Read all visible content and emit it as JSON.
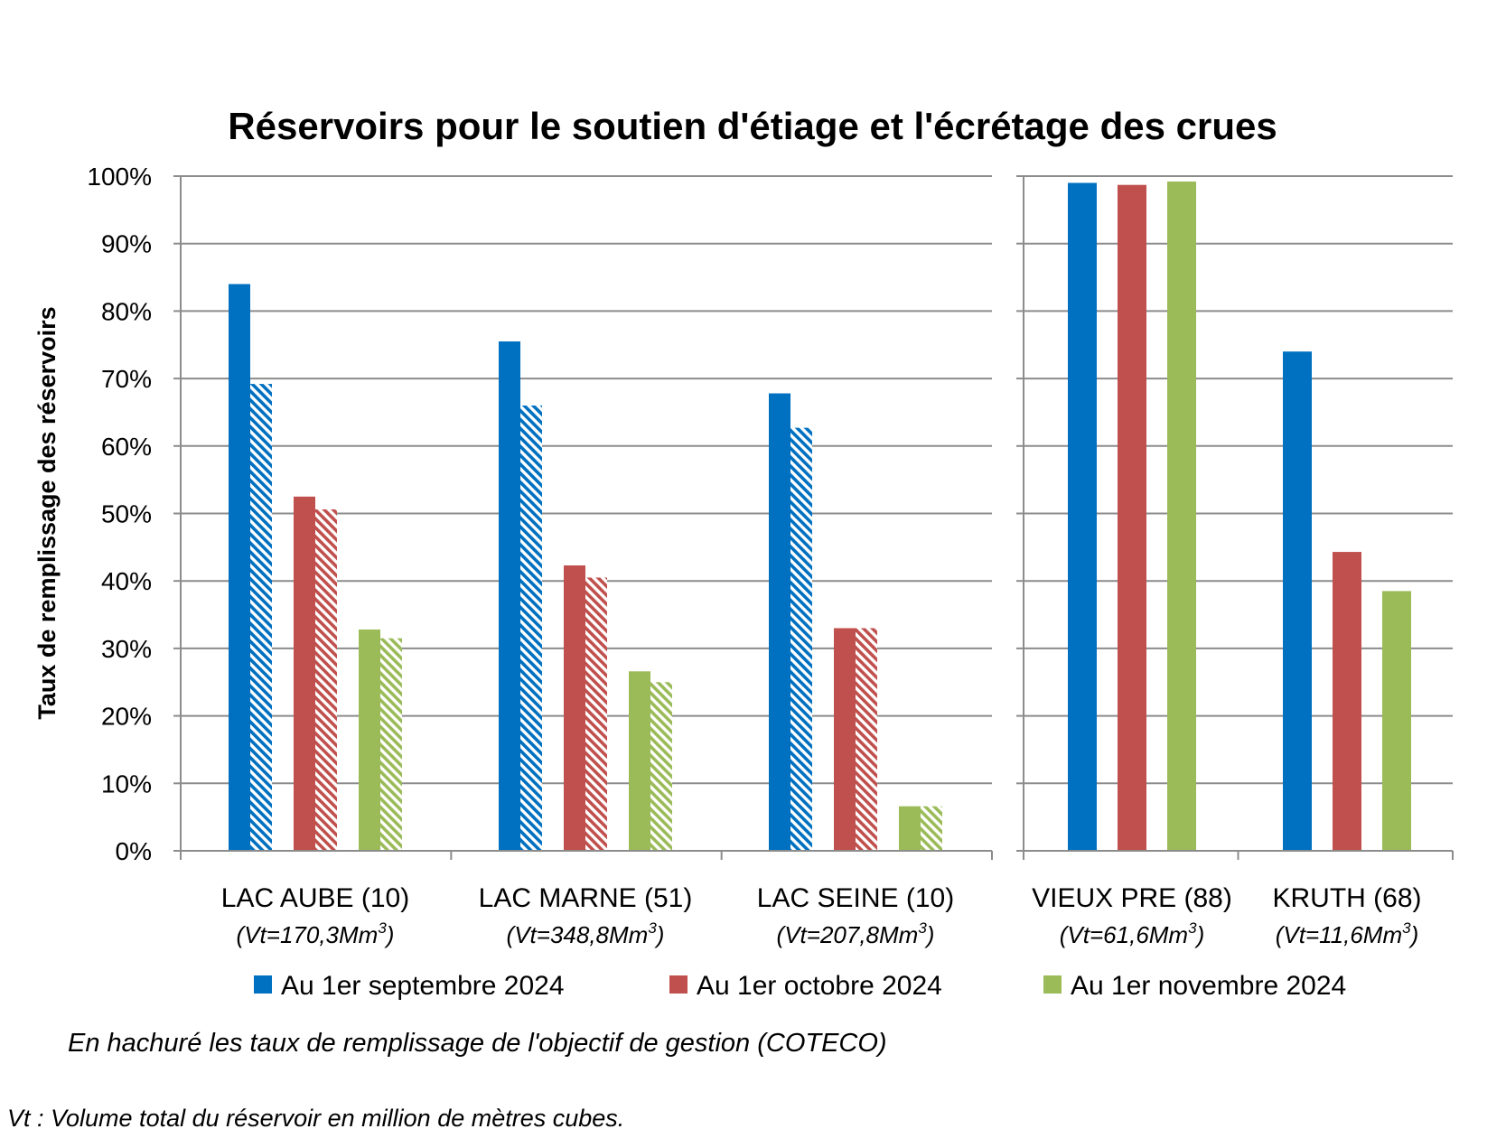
{
  "chart_data": {
    "type": "bar",
    "title": "Réservoirs pour le soutien d'étiage et l'écrétage des crues",
    "ylabel": "Taux de remplissage des réservoirs",
    "ylim": [
      0,
      100
    ],
    "yticks": [
      "0%",
      "10%",
      "20%",
      "30%",
      "40%",
      "50%",
      "60%",
      "70%",
      "80%",
      "90%",
      "100%"
    ],
    "grid": true,
    "legend_position": "bottom",
    "panels": [
      {
        "categories": [
          {
            "name": "LAC AUBE (10)",
            "vt_label": "(Vt=170,3Mm",
            "vt_sup": "3",
            "vt_close": ")"
          },
          {
            "name": "LAC MARNE (51)",
            "vt_label": "(Vt=348,8Mm",
            "vt_sup": "3",
            "vt_close": ")"
          },
          {
            "name": "LAC SEINE (10)",
            "vt_label": "(Vt=207,8Mm",
            "vt_sup": "3",
            "vt_close": ")"
          }
        ],
        "has_objective": true
      },
      {
        "categories": [
          {
            "name": "VIEUX PRE (88)",
            "vt_label": "(Vt=61,6Mm",
            "vt_sup": "3",
            "vt_close": ")"
          },
          {
            "name": "KRUTH (68)",
            "vt_label": "(Vt=11,6Mm",
            "vt_sup": "3",
            "vt_close": ")"
          }
        ],
        "has_objective": false
      }
    ],
    "series": [
      {
        "name": "Au 1er septembre 2024",
        "color": "#0070C0",
        "values": [
          84.0,
          75.5,
          67.8,
          99.0,
          74.0
        ],
        "objective": [
          69.2,
          66.0,
          62.7,
          null,
          null
        ]
      },
      {
        "name": "Au 1er octobre 2024",
        "color": "#C0504D",
        "values": [
          52.5,
          42.3,
          33.0,
          98.7,
          44.3
        ],
        "objective": [
          50.6,
          40.5,
          33.0,
          null,
          null
        ]
      },
      {
        "name": "Au 1er novembre 2024",
        "color": "#9BBB59",
        "values": [
          32.8,
          26.6,
          6.6,
          99.2,
          38.5
        ],
        "objective": [
          31.5,
          25.0,
          6.6,
          null,
          null
        ]
      }
    ]
  },
  "notes": {
    "hatch_note": "En hachuré les taux de remplissage de l'objectif de gestion (COTECO)",
    "vt_note": "Vt : Volume total du réservoir en million de mètres cubes."
  }
}
